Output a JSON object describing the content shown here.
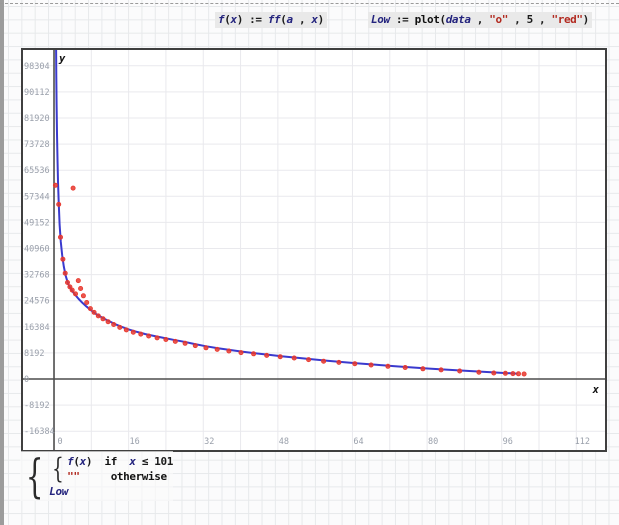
{
  "formulas": {
    "f_def": {
      "tokens": [
        [
          "f",
          "v"
        ],
        [
          "(",
          "p"
        ],
        [
          "x",
          "v"
        ],
        [
          ")",
          "p"
        ],
        [
          " := ",
          "p"
        ],
        [
          "ff",
          "v"
        ],
        [
          "(",
          "p"
        ],
        [
          "a",
          "v"
        ],
        [
          " , ",
          "p"
        ],
        [
          "x",
          "v"
        ],
        [
          ")",
          "p"
        ]
      ]
    },
    "low_def": {
      "tokens": [
        [
          "Low",
          "v"
        ],
        [
          " := ",
          "p"
        ],
        [
          "plot",
          "fn"
        ],
        [
          "(",
          "p"
        ],
        [
          "data",
          "v"
        ],
        [
          " , ",
          "p"
        ],
        [
          "\"o\"",
          "s"
        ],
        [
          " , ",
          "p"
        ],
        [
          "5",
          "n"
        ],
        [
          " , ",
          "p"
        ],
        [
          "\"red\"",
          "s"
        ],
        [
          ")",
          "p"
        ]
      ]
    }
  },
  "piecewise": {
    "outer_brace": "{",
    "inner_brace": "{",
    "lines": [
      [
        [
          "f",
          "v"
        ],
        [
          "(",
          "p"
        ],
        [
          "x",
          "v"
        ],
        [
          ")",
          "p"
        ],
        [
          "  if  ",
          "k"
        ],
        [
          "x",
          "v"
        ],
        [
          " ≤ ",
          "p"
        ],
        [
          "101",
          "n"
        ]
      ],
      [
        [
          "\"\"",
          "s"
        ],
        [
          "     ",
          "p"
        ],
        [
          "otherwise",
          "k"
        ]
      ],
      [
        [
          "Low",
          "v"
        ]
      ]
    ]
  },
  "chart_data": {
    "type": "line",
    "title": "",
    "xlabel": "x",
    "ylabel": "y",
    "xlim": [
      -6.65,
      118.15
    ],
    "ylim": [
      -22280,
      103256
    ],
    "x_ticks": [
      0,
      16,
      32,
      48,
      64,
      80,
      96,
      112
    ],
    "y_ticks": [
      98304,
      90112,
      81920,
      73728,
      65536,
      57344,
      49152,
      40960,
      32768,
      24576,
      16384,
      8192,
      0,
      -8192,
      -16384
    ],
    "x_grid_step": 8,
    "y_grid_step": 8192,
    "grid": true,
    "colors": {
      "grid": "#e9e9ed",
      "axis": "#4d4d4d",
      "tick_label": "#9aa0ab",
      "axis_letter": "#111111",
      "curve": "#3a3ace",
      "marker": "#e8382e"
    },
    "series": [
      {
        "name": "f(x)",
        "type": "line",
        "points": [
          [
            0.42,
            118000
          ],
          [
            0.45,
            104000
          ],
          [
            0.5,
            95000
          ],
          [
            0.56,
            86000
          ],
          [
            0.64,
            77000
          ],
          [
            0.74,
            69000
          ],
          [
            0.86,
            62000
          ],
          [
            1.0,
            55500
          ],
          [
            1.2,
            48500
          ],
          [
            1.45,
            43000
          ],
          [
            1.75,
            38800
          ],
          [
            2.1,
            35300
          ],
          [
            2.5,
            32400
          ],
          [
            3.0,
            30000
          ],
          [
            3.5,
            28600
          ],
          [
            4.0,
            27400
          ],
          [
            4.6,
            26300
          ],
          [
            5.3,
            25100
          ],
          [
            6.1,
            23900
          ],
          [
            7.0,
            22700
          ],
          [
            8.0,
            21500
          ],
          [
            9.1,
            20300
          ],
          [
            10.3,
            19300
          ],
          [
            11.6,
            18300
          ],
          [
            13.0,
            17300
          ],
          [
            14.5,
            16400
          ],
          [
            16.1,
            15500
          ],
          [
            17.8,
            14800
          ],
          [
            19.6,
            14100
          ],
          [
            21.5,
            13500
          ],
          [
            23.5,
            12900
          ],
          [
            25.6,
            12300
          ],
          [
            27.8,
            11700
          ],
          [
            30.1,
            11000
          ],
          [
            32.5,
            10300
          ],
          [
            35.0,
            9700
          ],
          [
            37.6,
            9150
          ],
          [
            40.3,
            8600
          ],
          [
            43.1,
            8100
          ],
          [
            46.0,
            7600
          ],
          [
            49.0,
            7100
          ],
          [
            52.1,
            6650
          ],
          [
            55.3,
            6200
          ],
          [
            58.6,
            5750
          ],
          [
            62.0,
            5300
          ],
          [
            65.5,
            4870
          ],
          [
            69.1,
            4450
          ],
          [
            72.8,
            4050
          ],
          [
            76.6,
            3650
          ],
          [
            80.5,
            3270
          ],
          [
            84.5,
            2900
          ],
          [
            88.6,
            2540
          ],
          [
            92.8,
            2190
          ],
          [
            96.0,
            1930
          ],
          [
            98.0,
            1780
          ],
          [
            99.2,
            1700
          ]
        ]
      },
      {
        "name": "Low (data)",
        "type": "scatter",
        "marker": "o",
        "marker_size": 5,
        "points": [
          [
            0.3,
            60800
          ],
          [
            4.1,
            59900
          ],
          [
            1.0,
            54800
          ],
          [
            1.4,
            44500
          ],
          [
            1.9,
            37600
          ],
          [
            2.4,
            33200
          ],
          [
            2.9,
            30300
          ],
          [
            3.4,
            28900
          ],
          [
            3.9,
            27900
          ],
          [
            4.6,
            26700
          ],
          [
            5.2,
            30900
          ],
          [
            5.7,
            28400
          ],
          [
            6.3,
            26100
          ],
          [
            7.0,
            24000
          ],
          [
            7.8,
            22100
          ],
          [
            8.6,
            20900
          ],
          [
            9.5,
            19800
          ],
          [
            10.5,
            18900
          ],
          [
            11.6,
            18000
          ],
          [
            12.8,
            17100
          ],
          [
            14.1,
            16200
          ],
          [
            15.5,
            15400
          ],
          [
            17.0,
            14700
          ],
          [
            18.6,
            14100
          ],
          [
            20.3,
            13500
          ],
          [
            22.1,
            12900
          ],
          [
            24.0,
            12400
          ],
          [
            26.0,
            11800
          ],
          [
            28.1,
            11200
          ],
          [
            30.3,
            10500
          ],
          [
            32.6,
            9800
          ],
          [
            35.0,
            9300
          ],
          [
            37.5,
            8800
          ],
          [
            40.1,
            8300
          ],
          [
            42.8,
            7900
          ],
          [
            45.6,
            7400
          ],
          [
            48.5,
            7000
          ],
          [
            51.5,
            6600
          ],
          [
            54.6,
            6100
          ],
          [
            57.8,
            5600
          ],
          [
            61.1,
            5200
          ],
          [
            64.5,
            4800
          ],
          [
            68.0,
            4400
          ],
          [
            71.6,
            4000
          ],
          [
            75.3,
            3600
          ],
          [
            79.1,
            3200
          ],
          [
            83.0,
            2850
          ],
          [
            87.0,
            2500
          ],
          [
            91.1,
            2150
          ],
          [
            94.3,
            1900
          ],
          [
            96.8,
            1780
          ],
          [
            98.4,
            1700
          ],
          [
            99.6,
            1630
          ],
          [
            100.8,
            1560
          ]
        ]
      }
    ]
  }
}
